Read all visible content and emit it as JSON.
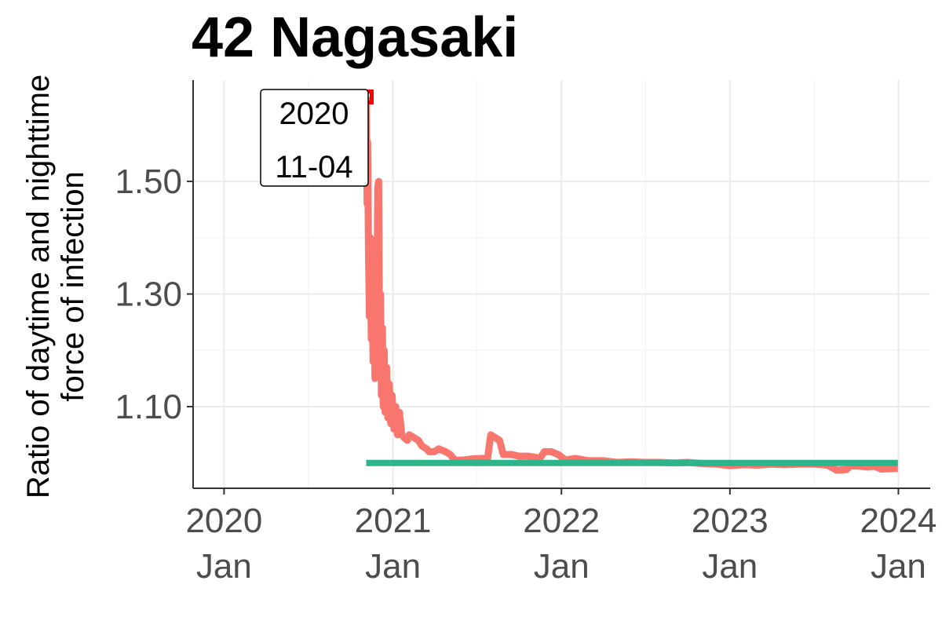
{
  "chart_data": {
    "type": "line",
    "title": "42 Nagasaki",
    "ylabel_lines": [
      "Ratio of daytime and nighttime",
      "force of infection"
    ],
    "xlabel": "",
    "ylim": [
      0.955,
      1.68
    ],
    "xlim": [
      "2019-10-26",
      "2024-03-10"
    ],
    "y_ticks": [
      {
        "value": 1.1,
        "label": "1.10"
      },
      {
        "value": 1.3,
        "label": "1.30"
      },
      {
        "value": 1.5,
        "label": "1.50"
      }
    ],
    "x_ticks": [
      {
        "date": "2020-01-01",
        "year": "2020",
        "month": "Jan"
      },
      {
        "date": "2021-01-01",
        "year": "2021",
        "month": "Jan"
      },
      {
        "date": "2022-01-01",
        "year": "2022",
        "month": "Jan"
      },
      {
        "date": "2023-01-01",
        "year": "2023",
        "month": "Jan"
      },
      {
        "date": "2024-01-01",
        "year": "2024",
        "month": "Jan"
      }
    ],
    "grid": true,
    "series": [
      {
        "color": "#F8766D",
        "points": [
          [
            "2020-11-04",
            1.65
          ],
          [
            "2020-11-06",
            1.46
          ],
          [
            "2020-11-07",
            1.57
          ],
          [
            "2020-11-09",
            1.38
          ],
          [
            "2020-11-11",
            1.26
          ],
          [
            "2020-11-13",
            1.4
          ],
          [
            "2020-11-15",
            1.22
          ],
          [
            "2020-11-17",
            1.33
          ],
          [
            "2020-11-19",
            1.18
          ],
          [
            "2020-11-21",
            1.29
          ],
          [
            "2020-11-23",
            1.15
          ],
          [
            "2020-11-25",
            1.28
          ],
          [
            "2020-11-27",
            1.2
          ],
          [
            "2020-11-29",
            1.49
          ],
          [
            "2020-12-01",
            1.5
          ],
          [
            "2020-12-03",
            1.19
          ],
          [
            "2020-12-05",
            1.3
          ],
          [
            "2020-12-07",
            1.12
          ],
          [
            "2020-12-09",
            1.24
          ],
          [
            "2020-12-11",
            1.1
          ],
          [
            "2020-12-13",
            1.2
          ],
          [
            "2020-12-15",
            1.09
          ],
          [
            "2020-12-18",
            1.17
          ],
          [
            "2020-12-21",
            1.08
          ],
          [
            "2020-12-24",
            1.14
          ],
          [
            "2020-12-27",
            1.07
          ],
          [
            "2020-12-30",
            1.12
          ],
          [
            "2021-01-03",
            1.06
          ],
          [
            "2021-01-07",
            1.1
          ],
          [
            "2021-01-11",
            1.05
          ],
          [
            "2021-01-15",
            1.09
          ],
          [
            "2021-01-20",
            1.05
          ],
          [
            "2021-01-25",
            1.045
          ],
          [
            "2021-02-01",
            1.04
          ],
          [
            "2021-02-05",
            1.05
          ],
          [
            "2021-02-15",
            1.045
          ],
          [
            "2021-02-25",
            1.04
          ],
          [
            "2021-03-05",
            1.03
          ],
          [
            "2021-03-15",
            1.025
          ],
          [
            "2021-03-20",
            1.02
          ],
          [
            "2021-04-01",
            1.02
          ],
          [
            "2021-04-10",
            1.025
          ],
          [
            "2021-04-25",
            1.02
          ],
          [
            "2021-05-05",
            1.015
          ],
          [
            "2021-05-15",
            1.005
          ],
          [
            "2021-06-01",
            1.005
          ],
          [
            "2021-06-20",
            1.007
          ],
          [
            "2021-07-10",
            1.008
          ],
          [
            "2021-07-25",
            1.008
          ],
          [
            "2021-08-01",
            1.05
          ],
          [
            "2021-08-10",
            1.045
          ],
          [
            "2021-08-20",
            1.04
          ],
          [
            "2021-08-28",
            1.015
          ],
          [
            "2021-09-15",
            1.015
          ],
          [
            "2021-10-01",
            1.012
          ],
          [
            "2021-10-20",
            1.012
          ],
          [
            "2021-11-05",
            1.01
          ],
          [
            "2021-11-15",
            1.008
          ],
          [
            "2021-11-25",
            1.02
          ],
          [
            "2021-12-10",
            1.02
          ],
          [
            "2021-12-25",
            1.015
          ],
          [
            "2022-01-10",
            1.005
          ],
          [
            "2022-02-01",
            1.008
          ],
          [
            "2022-03-01",
            1.004
          ],
          [
            "2022-04-01",
            1.004
          ],
          [
            "2022-05-01",
            1.001
          ],
          [
            "2022-06-01",
            1.002
          ],
          [
            "2022-07-01",
            1.001
          ],
          [
            "2022-08-01",
            1.001
          ],
          [
            "2022-09-01",
            1.0
          ],
          [
            "2022-10-01",
            1.001
          ],
          [
            "2022-11-01",
            0.999
          ],
          [
            "2022-12-01",
            0.998
          ],
          [
            "2023-01-01",
            0.995
          ],
          [
            "2023-02-01",
            0.997
          ],
          [
            "2023-03-01",
            0.996
          ],
          [
            "2023-04-01",
            0.998
          ],
          [
            "2023-05-01",
            0.997
          ],
          [
            "2023-06-01",
            0.998
          ],
          [
            "2023-07-01",
            0.998
          ],
          [
            "2023-08-01",
            0.996
          ],
          [
            "2023-08-20",
            0.987
          ],
          [
            "2023-09-10",
            0.988
          ],
          [
            "2023-09-20",
            0.995
          ],
          [
            "2023-10-10",
            0.994
          ],
          [
            "2023-10-25",
            0.993
          ],
          [
            "2023-11-10",
            0.994
          ],
          [
            "2023-11-25",
            0.989
          ],
          [
            "2023-12-20",
            0.99
          ],
          [
            "2023-12-31",
            0.99
          ]
        ]
      },
      {
        "color": "#2DB48A",
        "points": [
          [
            "2020-11-04",
            1.0
          ],
          [
            "2023-12-31",
            1.0
          ]
        ]
      }
    ],
    "highlight_point": {
      "date": "2020-11-04",
      "value": 1.65,
      "color": "#FF0000"
    },
    "annotation": {
      "lines": [
        "2020",
        "11-04"
      ]
    }
  }
}
